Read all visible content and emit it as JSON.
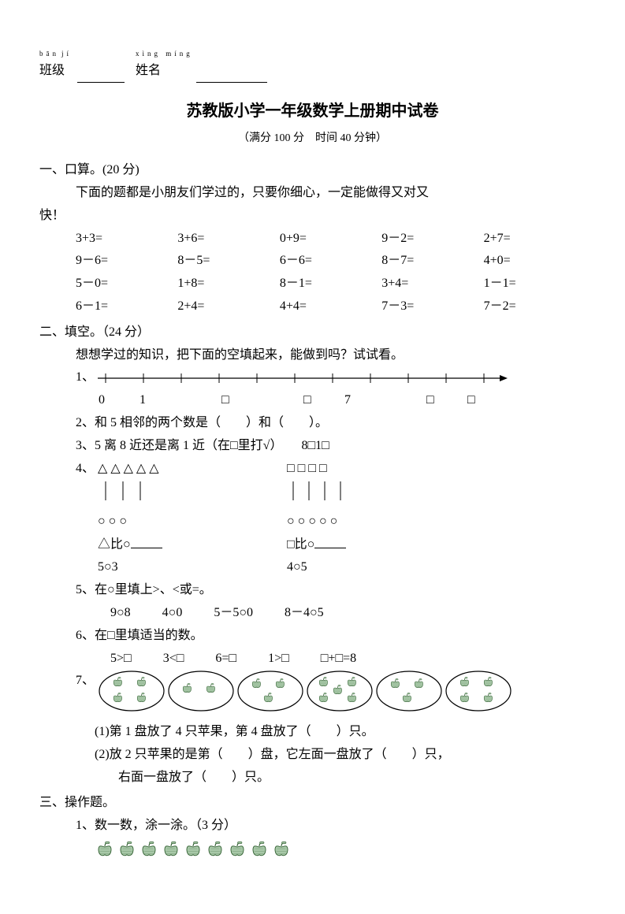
{
  "header": {
    "pinyin_ban": "bān",
    "pinyin_ji": "jí",
    "pinyin_xing": "xìng míng",
    "banji": "班级",
    "xingming": "姓名"
  },
  "title": "苏教版小学一年级数学上册期中试卷",
  "subtitle": "（满分 100 分　时间 40 分钟）",
  "s1": {
    "head": "一、口算。(20 分)",
    "intro": "下面的题都是小朋友们学过的，只要你细心，一定能做得又对又快！",
    "rows": [
      [
        "3+3=",
        "3+6=",
        "0+9=",
        "9－2=",
        "2+7="
      ],
      [
        "9－6=",
        "8－5=",
        "6－6=",
        "8－7=",
        "4+0="
      ],
      [
        "5－0=",
        "1+8=",
        "8－1=",
        "3+4=",
        "1－1="
      ],
      [
        "6－1=",
        "2+4=",
        "4+4=",
        "7－3=",
        "7－2="
      ]
    ]
  },
  "s2": {
    "head": "二、填空。（24 分）",
    "intro": "想想学过的知识，把下面的空填起来，能做到吗？试试看。",
    "q1": "1、",
    "q1_labels": [
      "0",
      "1",
      "",
      "□",
      "",
      "□",
      "7",
      "",
      "□",
      "□"
    ],
    "q2": "2、和 5 相邻的两个数是（　　）和（　　）。",
    "q3": "3、5 离 8 近还是离 1 近（在□里打√）　　8□1□",
    "q4": "4、",
    "q4_tri": "△ △ △ △ △",
    "q4_sq": "□ □ □ □",
    "q4_circ1": "○ ○ ○",
    "q4_circ2": "○ ○ ○ ○ ○",
    "q4_cmp1": "△比○",
    "q4_cmp2": "□比○",
    "q4_line1": "5○3",
    "q4_line2": "4○5",
    "q5": "5、在○里填上>、<或=。",
    "q5_items": [
      "9○8",
      "4○0",
      "5－5○0",
      "8－4○5"
    ],
    "q6": "6、在□里填适当的数。",
    "q6_items": [
      "5>□",
      "3<□",
      "6=□",
      "1>□",
      "□+□=8"
    ],
    "q7": "7、",
    "q7_counts": [
      4,
      2,
      3,
      5,
      3,
      4
    ],
    "q7_a": "(1)第 1 盘放了 4 只苹果，第 4 盘放了（　　）只。",
    "q7_b": "(2)放 2 只苹果的是第（　　）盘，它左面一盘放了（　　）只，",
    "q7_c": "右面一盘放了（　　）只。"
  },
  "s3": {
    "head": "三、操作题。",
    "q1": "1、数一数，涂一涂。（3 分）",
    "apple_count": 9
  },
  "colors": {
    "apple_fill": "#a8c8a8",
    "apple_stroke": "#2a5a2a"
  }
}
